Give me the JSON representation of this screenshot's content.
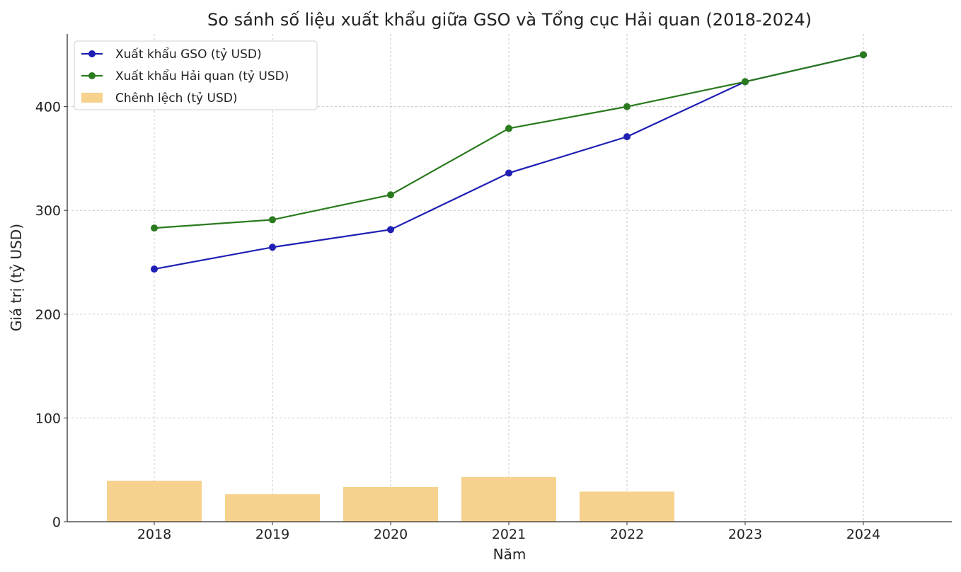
{
  "chart_data": {
    "type": "bar",
    "title": "So sánh số liệu xuất khẩu giữa GSO và Tổng cục Hải quan (2018-2024)",
    "xlabel": "Năm",
    "ylabel": "Giá trị (tỷ USD)",
    "categories": [
      "2018",
      "2019",
      "2020",
      "2021",
      "2022",
      "2023",
      "2024"
    ],
    "ylim": [
      0,
      470
    ],
    "yticks": [
      0,
      100,
      200,
      300,
      400
    ],
    "grid": true,
    "legend_position": "top-left",
    "series": [
      {
        "name": "Xuất khẩu GSO (tỷ USD)",
        "kind": "line",
        "color": "#1f1fb4",
        "values": [
          243.5,
          264.5,
          281.5,
          336,
          371,
          424,
          450
        ]
      },
      {
        "name": "Xuất khẩu Hải quan (tỷ USD)",
        "kind": "line",
        "color": "#2a7a1e",
        "values": [
          283,
          291,
          315,
          379,
          400,
          424,
          450
        ]
      },
      {
        "name": "Chênh lệch (tỷ USD)",
        "kind": "bar",
        "color": "#f6d28e",
        "values": [
          39.5,
          26.5,
          33.5,
          43,
          29,
          0,
          0
        ]
      }
    ]
  }
}
